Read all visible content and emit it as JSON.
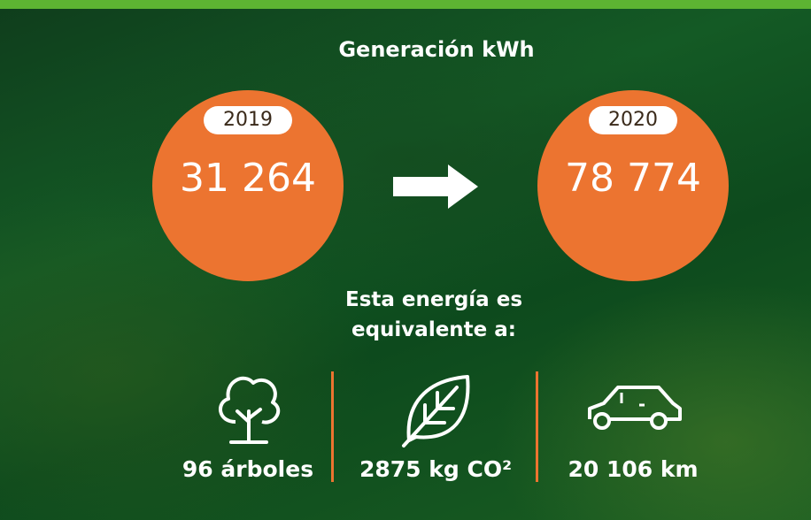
{
  "title": "Generación kWh",
  "comparison": [
    {
      "year": "2019",
      "value": "31 264"
    },
    {
      "year": "2020",
      "value": "78 774"
    }
  ],
  "equivalence": {
    "heading": [
      "Esta energía es",
      "equivalente a:"
    ],
    "items": [
      {
        "label": "96 árboles"
      },
      {
        "label": "2875 kg CO²"
      },
      {
        "label": "20 106 km"
      }
    ]
  }
}
